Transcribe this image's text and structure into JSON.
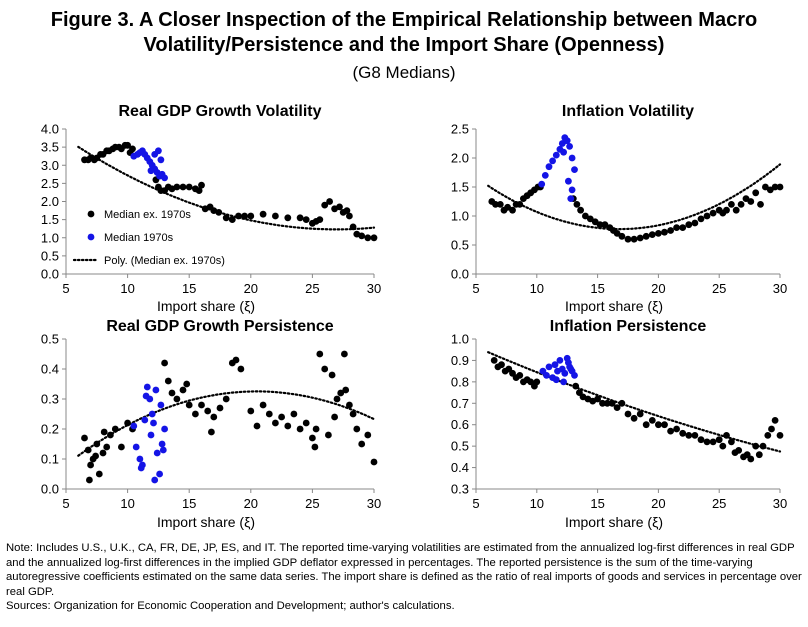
{
  "figure": {
    "title_line1": "Figure 3. A Closer Inspection of the Empirical Relationship between Macro",
    "title_line2": "Volatility/Persistence and the Import Share (Openness)",
    "subtitle": "(G8 Medians)"
  },
  "colors": {
    "ex1970s": "#000000",
    "m1970s": "#1414e6",
    "poly": "#000000"
  },
  "legend": {
    "ex1970s": "Median ex. 1970s",
    "m1970s": "Median 1970s",
    "poly": "Poly. (Median ex. 1970s)"
  },
  "chart_data": [
    {
      "type": "scatter",
      "title": "Real GDP Growth Volatility",
      "xlabel": "Import share (ξ)",
      "xlim": [
        5,
        30
      ],
      "ylim": [
        0,
        4
      ],
      "xticks": [
        "5",
        "10",
        "15",
        "20",
        "25",
        "30"
      ],
      "yticks": [
        "0.0",
        "0.5",
        "1.0",
        "1.5",
        "2.0",
        "2.5",
        "3.0",
        "3.5",
        "4.0"
      ],
      "legend_position": "bottom-left",
      "series": [
        {
          "name": "Median ex. 1970s",
          "x": [
            6.5,
            6.8,
            7.0,
            7.3,
            7.5,
            7.8,
            8.0,
            8.3,
            8.5,
            8.8,
            9.0,
            9.3,
            9.5,
            9.8,
            10.0,
            10.2,
            10.4,
            12.3,
            12.5,
            12.7,
            13.0,
            13.3,
            13.6,
            14.0,
            14.5,
            15.0,
            15.5,
            15.8,
            16.0,
            16.3,
            16.7,
            17.0,
            17.4,
            18.0,
            18.5,
            19.0,
            19.5,
            20.0,
            21.0,
            22.0,
            23.0,
            24.0,
            24.5,
            25.0,
            25.3,
            25.6,
            26.0,
            26.4,
            26.8,
            27.2,
            27.5,
            27.8,
            28.0,
            28.3,
            28.6,
            29.0,
            29.5,
            30.0
          ],
          "y": [
            3.15,
            3.15,
            3.2,
            3.15,
            3.2,
            3.3,
            3.3,
            3.4,
            3.4,
            3.45,
            3.5,
            3.5,
            3.45,
            3.55,
            3.55,
            3.35,
            3.45,
            2.6,
            2.4,
            2.3,
            2.3,
            2.4,
            2.35,
            2.4,
            2.4,
            2.4,
            2.35,
            2.3,
            2.45,
            1.8,
            1.85,
            1.75,
            1.7,
            1.55,
            1.5,
            1.6,
            1.6,
            1.6,
            1.65,
            1.6,
            1.55,
            1.55,
            1.5,
            1.4,
            1.45,
            1.5,
            1.9,
            2.0,
            1.8,
            1.85,
            1.7,
            1.75,
            1.6,
            1.3,
            1.1,
            1.05,
            1.0,
            1.0
          ]
        },
        {
          "name": "Median 1970s",
          "x": [
            10.5,
            10.8,
            11.0,
            11.2,
            11.4,
            11.6,
            11.8,
            12.0,
            12.2,
            12.4,
            12.6,
            12.8,
            13.0,
            12.5,
            12.2,
            11.9,
            12.7
          ],
          "y": [
            3.25,
            3.3,
            3.35,
            3.4,
            3.3,
            3.2,
            3.1,
            3.0,
            2.9,
            2.8,
            2.7,
            2.75,
            2.65,
            3.4,
            3.3,
            2.85,
            3.15
          ]
        }
      ],
      "poly_coeffs": [
        5.0,
        -0.28,
        0.0052
      ]
    },
    {
      "type": "scatter",
      "title": "Inflation Volatility",
      "xlabel": "Import share (ξ)",
      "xlim": [
        5,
        30
      ],
      "ylim": [
        0,
        2.5
      ],
      "xticks": [
        "5",
        "10",
        "15",
        "20",
        "25",
        "30"
      ],
      "yticks": [
        "0.0",
        "0.5",
        "1.0",
        "1.5",
        "2.0",
        "2.5"
      ],
      "series": [
        {
          "name": "Median ex. 1970s",
          "x": [
            6.3,
            6.6,
            7.0,
            7.3,
            7.6,
            8.0,
            8.3,
            8.6,
            8.9,
            9.2,
            9.5,
            9.8,
            10.1,
            10.3,
            13.0,
            13.3,
            13.6,
            14.0,
            14.4,
            14.8,
            15.2,
            15.6,
            16.0,
            16.3,
            16.6,
            17.0,
            17.5,
            18.0,
            18.5,
            19.0,
            19.5,
            20.0,
            20.5,
            21.0,
            21.5,
            22.0,
            22.5,
            23.0,
            23.5,
            24.0,
            24.5,
            25.0,
            25.3,
            25.6,
            26.0,
            26.4,
            26.8,
            27.2,
            27.6,
            28.0,
            28.4,
            28.8,
            29.2,
            29.6,
            30.0
          ],
          "y": [
            1.25,
            1.2,
            1.2,
            1.1,
            1.15,
            1.1,
            1.2,
            1.2,
            1.3,
            1.35,
            1.4,
            1.45,
            1.5,
            1.5,
            1.3,
            1.2,
            1.1,
            1.0,
            0.95,
            0.9,
            0.85,
            0.85,
            0.8,
            0.75,
            0.7,
            0.65,
            0.6,
            0.6,
            0.62,
            0.65,
            0.68,
            0.7,
            0.72,
            0.75,
            0.8,
            0.8,
            0.85,
            0.88,
            0.95,
            1.0,
            1.05,
            1.1,
            1.05,
            1.1,
            1.2,
            1.1,
            1.2,
            1.3,
            1.25,
            1.4,
            1.2,
            1.5,
            1.45,
            1.5,
            1.5
          ]
        },
        {
          "name": "Median 1970s",
          "x": [
            10.4,
            10.7,
            11.0,
            11.3,
            11.6,
            11.9,
            12.1,
            12.3,
            12.5,
            12.7,
            12.9,
            13.1,
            12.2,
            12.6,
            12.9,
            12.4,
            12.8
          ],
          "y": [
            1.55,
            1.7,
            1.85,
            1.95,
            2.05,
            2.15,
            2.25,
            2.35,
            2.3,
            2.2,
            2.0,
            1.8,
            2.1,
            1.6,
            1.45,
            2.3,
            1.3
          ]
        }
      ],
      "poly_coeffs": [
        2.58,
        -0.215,
        0.0064
      ]
    },
    {
      "type": "scatter",
      "title": "Real GDP Growth Persistence",
      "xlabel": "Import share (ξ)",
      "xlim": [
        5,
        30
      ],
      "ylim": [
        0,
        0.5
      ],
      "xticks": [
        "5",
        "10",
        "15",
        "20",
        "25",
        "30"
      ],
      "yticks": [
        "0.0",
        "0.1",
        "0.2",
        "0.3",
        "0.4",
        "0.5"
      ],
      "series": [
        {
          "name": "Median ex. 1970s",
          "x": [
            6.5,
            6.8,
            7.0,
            7.2,
            7.5,
            7.7,
            8.0,
            8.3,
            8.6,
            9.0,
            9.5,
            10.0,
            10.4,
            13.0,
            13.3,
            13.6,
            14.0,
            14.5,
            15.0,
            15.5,
            16.0,
            16.5,
            17.0,
            17.5,
            18.0,
            18.5,
            18.8,
            19.2,
            20.0,
            20.5,
            21.0,
            21.5,
            22.0,
            22.5,
            23.0,
            23.5,
            24.0,
            24.5,
            25.0,
            25.3,
            25.6,
            26.0,
            26.3,
            26.6,
            27.0,
            27.3,
            27.6,
            28.0,
            28.3,
            28.6,
            29.0,
            29.5,
            30.0,
            6.9,
            7.4,
            8.1,
            14.8,
            16.8,
            25.2,
            26.8,
            27.7
          ],
          "y": [
            0.17,
            0.13,
            0.08,
            0.1,
            0.15,
            0.05,
            0.12,
            0.14,
            0.18,
            0.2,
            0.14,
            0.22,
            0.2,
            0.42,
            0.36,
            0.32,
            0.3,
            0.33,
            0.28,
            0.25,
            0.28,
            0.26,
            0.24,
            0.27,
            0.3,
            0.42,
            0.43,
            0.4,
            0.26,
            0.21,
            0.28,
            0.25,
            0.22,
            0.24,
            0.21,
            0.25,
            0.2,
            0.22,
            0.17,
            0.2,
            0.45,
            0.4,
            0.18,
            0.38,
            0.3,
            0.32,
            0.45,
            0.28,
            0.25,
            0.2,
            0.15,
            0.18,
            0.09,
            0.03,
            0.11,
            0.19,
            0.35,
            0.19,
            0.14,
            0.24,
            0.33
          ]
        },
        {
          "name": "Median 1970s",
          "x": [
            10.5,
            10.7,
            11.0,
            11.2,
            11.4,
            11.6,
            11.8,
            12.0,
            12.2,
            12.4,
            12.6,
            12.8,
            13.0,
            11.5,
            11.9,
            12.3,
            12.7,
            11.1,
            12.1,
            12.9
          ],
          "y": [
            0.21,
            0.14,
            0.1,
            0.08,
            0.23,
            0.34,
            0.3,
            0.25,
            0.03,
            0.12,
            0.05,
            0.15,
            0.2,
            0.31,
            0.18,
            0.33,
            0.28,
            0.07,
            0.22,
            0.13
          ]
        }
      ],
      "poly_coeffs": [
        -0.103,
        0.0418,
        -0.00102
      ]
    },
    {
      "type": "scatter",
      "title": "Inflation Persistence",
      "xlabel": "Import share (ξ)",
      "xlim": [
        5,
        30
      ],
      "ylim": [
        0.3,
        1.0
      ],
      "xticks": [
        "5",
        "10",
        "15",
        "20",
        "25",
        "30"
      ],
      "yticks": [
        "0.3",
        "0.4",
        "0.5",
        "0.6",
        "0.7",
        "0.8",
        "0.9",
        "1.0"
      ],
      "series": [
        {
          "name": "Median ex. 1970s",
          "x": [
            6.5,
            6.8,
            7.1,
            7.4,
            7.7,
            8.0,
            8.3,
            8.6,
            8.9,
            9.2,
            9.5,
            9.8,
            10.0,
            13.2,
            13.5,
            13.8,
            14.2,
            14.6,
            15.0,
            15.4,
            15.8,
            16.2,
            16.6,
            17.0,
            17.5,
            18.0,
            18.5,
            19.0,
            19.5,
            20.0,
            20.5,
            21.0,
            21.5,
            22.0,
            22.5,
            23.0,
            23.5,
            24.0,
            24.5,
            25.0,
            25.3,
            25.6,
            26.0,
            26.3,
            26.6,
            27.0,
            27.3,
            27.6,
            28.0,
            28.3,
            28.6,
            29.0,
            29.3,
            29.6,
            30.0
          ],
          "y": [
            0.9,
            0.87,
            0.88,
            0.85,
            0.86,
            0.84,
            0.82,
            0.83,
            0.8,
            0.81,
            0.8,
            0.78,
            0.8,
            0.78,
            0.75,
            0.73,
            0.72,
            0.71,
            0.72,
            0.7,
            0.7,
            0.7,
            0.68,
            0.7,
            0.65,
            0.63,
            0.65,
            0.6,
            0.62,
            0.6,
            0.6,
            0.57,
            0.58,
            0.56,
            0.55,
            0.55,
            0.53,
            0.52,
            0.52,
            0.53,
            0.5,
            0.55,
            0.52,
            0.47,
            0.48,
            0.45,
            0.46,
            0.44,
            0.5,
            0.46,
            0.5,
            0.55,
            0.58,
            0.62,
            0.55
          ]
        },
        {
          "name": "Median 1970s",
          "x": [
            10.5,
            10.8,
            11.0,
            11.3,
            11.5,
            11.7,
            11.9,
            12.1,
            12.3,
            12.5,
            12.7,
            12.9,
            13.1,
            12.2,
            12.6,
            11.6,
            12.8
          ],
          "y": [
            0.85,
            0.83,
            0.87,
            0.82,
            0.88,
            0.85,
            0.9,
            0.86,
            0.84,
            0.91,
            0.87,
            0.85,
            0.83,
            0.8,
            0.89,
            0.81,
            0.86
          ]
        }
      ],
      "poly_coeffs": [
        1.09,
        -0.0265,
        0.0002
      ]
    }
  ],
  "note": {
    "text": "Note: Includes U.S., U.K., CA, FR, DE, JP, ES, and IT. The reported time-varying volatilities are estimated from the annualized log-first differences in real GDP and the annualized log-first differences in the implied GDP deflator expressed in percentages. The reported persistence is the sum of the time-varying autoregressive coefficients estimated on the same data series. The import share is defined as the ratio of real imports of goods and services in percentage over real GDP.",
    "sources": "Sources: Organization for Economic Cooperation and Development; author's calculations."
  }
}
